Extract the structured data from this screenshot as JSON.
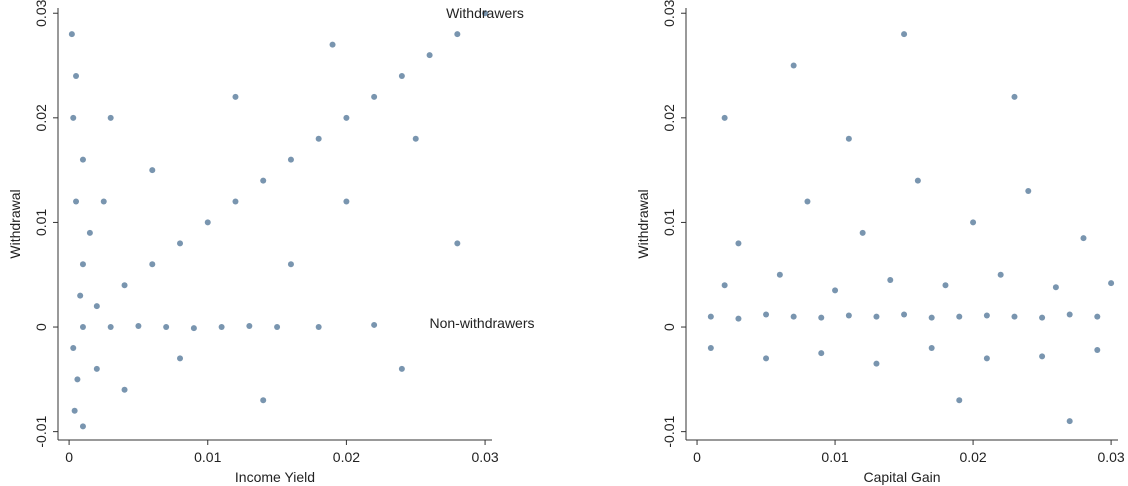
{
  "chart_data": [
    {
      "type": "scatter",
      "x_label": "Income Yield",
      "y_label": "Withdrawal",
      "color": "#1f4e79",
      "annotations": [
        "Withdrawers",
        "Non-withdrawers"
      ],
      "xlim": [
        -0.0008,
        0.0305
      ],
      "ylim": [
        -0.0108,
        0.0305
      ],
      "xticks": [
        0,
        0.01,
        0.02,
        0.03
      ],
      "yticks": [
        -0.01,
        0,
        0.01,
        0.02,
        0.03
      ],
      "x": [
        0.002,
        0.004,
        0.006,
        0.008,
        0.01,
        0.012,
        0.014,
        0.016,
        0.018,
        0.02,
        0.022,
        0.024,
        0.026,
        0.028,
        0.03,
        0.001,
        0.003,
        0.005,
        0.007,
        0.009,
        0.011,
        0.013,
        0.015,
        0.018,
        0.022,
        0.0002,
        0.0005,
        0.0003,
        0.001,
        0.0005,
        0.0015,
        0.001,
        0.0008,
        0.0003,
        0.0006,
        0.0004,
        0.001,
        0.002,
        0.0025,
        0.003,
        0.004,
        0.006,
        0.008,
        0.012,
        0.016,
        0.02,
        0.025,
        0.014,
        0.024,
        0.028,
        0.019
      ],
      "y": [
        0.002,
        0.004,
        0.006,
        0.008,
        0.01,
        0.012,
        0.014,
        0.016,
        0.018,
        0.02,
        0.022,
        0.024,
        0.026,
        0.028,
        0.03,
        0,
        0,
        0.0001,
        0,
        -0.0001,
        0,
        0.0001,
        0,
        0,
        0.0002,
        0.028,
        0.024,
        0.02,
        0.016,
        0.012,
        0.009,
        0.006,
        0.003,
        -0.002,
        -0.005,
        -0.008,
        -0.0095,
        -0.004,
        0.012,
        0.02,
        -0.006,
        0.015,
        -0.003,
        0.022,
        0.006,
        0.012,
        0.018,
        -0.007,
        -0.004,
        0.008,
        0.027
      ]
    },
    {
      "type": "scatter",
      "x_label": "Capital Gain",
      "y_label": "Withdrawal",
      "color": "#1f4e79",
      "xlim": [
        -0.0008,
        0.0305
      ],
      "ylim": [
        -0.0108,
        0.0305
      ],
      "xticks": [
        0,
        0.01,
        0.02,
        0.03
      ],
      "yticks": [
        -0.01,
        0,
        0.01,
        0.02,
        0.03
      ],
      "x": [
        0.001,
        0.003,
        0.005,
        0.007,
        0.009,
        0.011,
        0.013,
        0.015,
        0.017,
        0.019,
        0.021,
        0.023,
        0.025,
        0.027,
        0.029,
        0.002,
        0.006,
        0.01,
        0.014,
        0.018,
        0.022,
        0.026,
        0.03,
        0.001,
        0.005,
        0.009,
        0.013,
        0.017,
        0.021,
        0.025,
        0.029,
        0.003,
        0.008,
        0.012,
        0.016,
        0.02,
        0.024,
        0.028,
        0.002,
        0.007,
        0.011,
        0.015,
        0.019,
        0.023,
        0.027
      ],
      "y": [
        0.001,
        0.0008,
        0.0012,
        0.001,
        0.0009,
        0.0011,
        0.001,
        0.0012,
        0.0009,
        0.001,
        0.0011,
        0.001,
        0.0009,
        0.0012,
        0.001,
        0.004,
        0.005,
        0.0035,
        0.0045,
        0.004,
        0.005,
        0.0038,
        0.0042,
        -0.002,
        -0.003,
        -0.0025,
        -0.0035,
        -0.002,
        -0.003,
        -0.0028,
        -0.0022,
        0.008,
        0.012,
        0.009,
        0.014,
        0.01,
        0.013,
        0.0085,
        0.02,
        0.025,
        0.018,
        0.028,
        -0.007,
        0.022,
        -0.009
      ]
    }
  ]
}
